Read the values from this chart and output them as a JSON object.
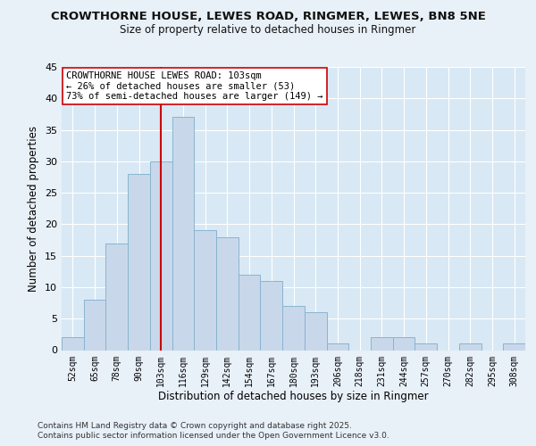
{
  "title": "CROWTHORNE HOUSE, LEWES ROAD, RINGMER, LEWES, BN8 5NE",
  "subtitle": "Size of property relative to detached houses in Ringmer",
  "xlabel": "Distribution of detached houses by size in Ringmer",
  "ylabel": "Number of detached properties",
  "bin_labels": [
    "52sqm",
    "65sqm",
    "78sqm",
    "90sqm",
    "103sqm",
    "116sqm",
    "129sqm",
    "142sqm",
    "154sqm",
    "167sqm",
    "180sqm",
    "193sqm",
    "206sqm",
    "218sqm",
    "231sqm",
    "244sqm",
    "257sqm",
    "270sqm",
    "282sqm",
    "295sqm",
    "308sqm"
  ],
  "bar_heights": [
    2,
    8,
    17,
    28,
    30,
    37,
    19,
    18,
    12,
    11,
    7,
    6,
    1,
    0,
    2,
    2,
    1,
    0,
    1,
    0,
    1
  ],
  "bar_color": "#c8d8ea",
  "bar_edge_color": "#89b4d0",
  "vline_x": 4,
  "vline_color": "#cc0000",
  "annotation_title": "CROWTHORNE HOUSE LEWES ROAD: 103sqm",
  "annotation_line1": "← 26% of detached houses are smaller (53)",
  "annotation_line2": "73% of semi-detached houses are larger (149) →",
  "annotation_box_color": "#ffffff",
  "annotation_box_edge": "#cc0000",
  "ylim": [
    0,
    45
  ],
  "yticks": [
    0,
    5,
    10,
    15,
    20,
    25,
    30,
    35,
    40,
    45
  ],
  "footer1": "Contains HM Land Registry data © Crown copyright and database right 2025.",
  "footer2": "Contains public sector information licensed under the Open Government Licence v3.0.",
  "bg_color": "#e8f0f8",
  "plot_bg_color": "#d8e8f4",
  "grid_color": "#ffffff"
}
